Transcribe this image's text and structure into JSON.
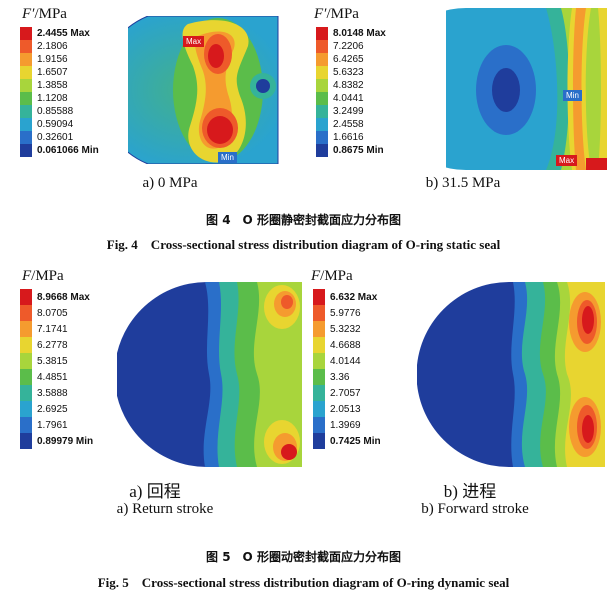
{
  "figure4": {
    "caption_cn": "图 4　O 形圈静密封截面应力分布图",
    "caption_en": "Fig. 4　Cross-sectional stress distribution diagram of O-ring static seal",
    "panels": [
      {
        "unit_symbol": "F′",
        "unit_text": "/MPa",
        "legend": [
          "2.4455 Max",
          "2.1806",
          "1.9156",
          "1.6507",
          "1.3858",
          "1.1208",
          "0.85588",
          "0.59094",
          "0.32601",
          "0.061066 Min"
        ],
        "max_tag": "Max",
        "min_tag": "Min",
        "label": "a)  0 MPa"
      },
      {
        "unit_symbol": "F′",
        "unit_text": "/MPa",
        "legend": [
          "8.0148 Max",
          "7.2206",
          "6.4265",
          "5.6323",
          "4.8382",
          "4.0441",
          "3.2499",
          "2.4558",
          "1.6616",
          "0.8675 Min"
        ],
        "max_tag": "Max",
        "min_tag": "Min",
        "label": "b)  31.5 MPa"
      }
    ]
  },
  "figure5": {
    "caption_cn": "图 5　O 形圈动密封截面应力分布图",
    "caption_en": "Fig. 5　Cross-sectional stress distribution diagram of O-ring dynamic seal",
    "panels": [
      {
        "unit_symbol": "F",
        "unit_text": "/MPa",
        "legend": [
          "8.9668 Max",
          "8.0705",
          "7.1741",
          "6.2778",
          "5.3815",
          "4.4851",
          "3.5888",
          "2.6925",
          "1.7961",
          "0.89979 Min"
        ],
        "label_cn": "a)  回程",
        "label_en": "a)  Return stroke"
      },
      {
        "unit_symbol": "F",
        "unit_text": "/MPa",
        "legend": [
          "6.632 Max",
          "5.9776",
          "5.3232",
          "4.6688",
          "4.0144",
          "3.36",
          "2.7057",
          "2.0513",
          "1.3969",
          "0.7425 Min"
        ],
        "label_cn": "b)  进程",
        "label_en": "b)  Forward stroke"
      }
    ]
  },
  "legend_colors": [
    "#d7191c",
    "#ee5a2a",
    "#f59b2f",
    "#e8d530",
    "#a8d53c",
    "#5bbd4a",
    "#35b39a",
    "#2aa3cf",
    "#2a6fc9",
    "#1f3d9c"
  ]
}
